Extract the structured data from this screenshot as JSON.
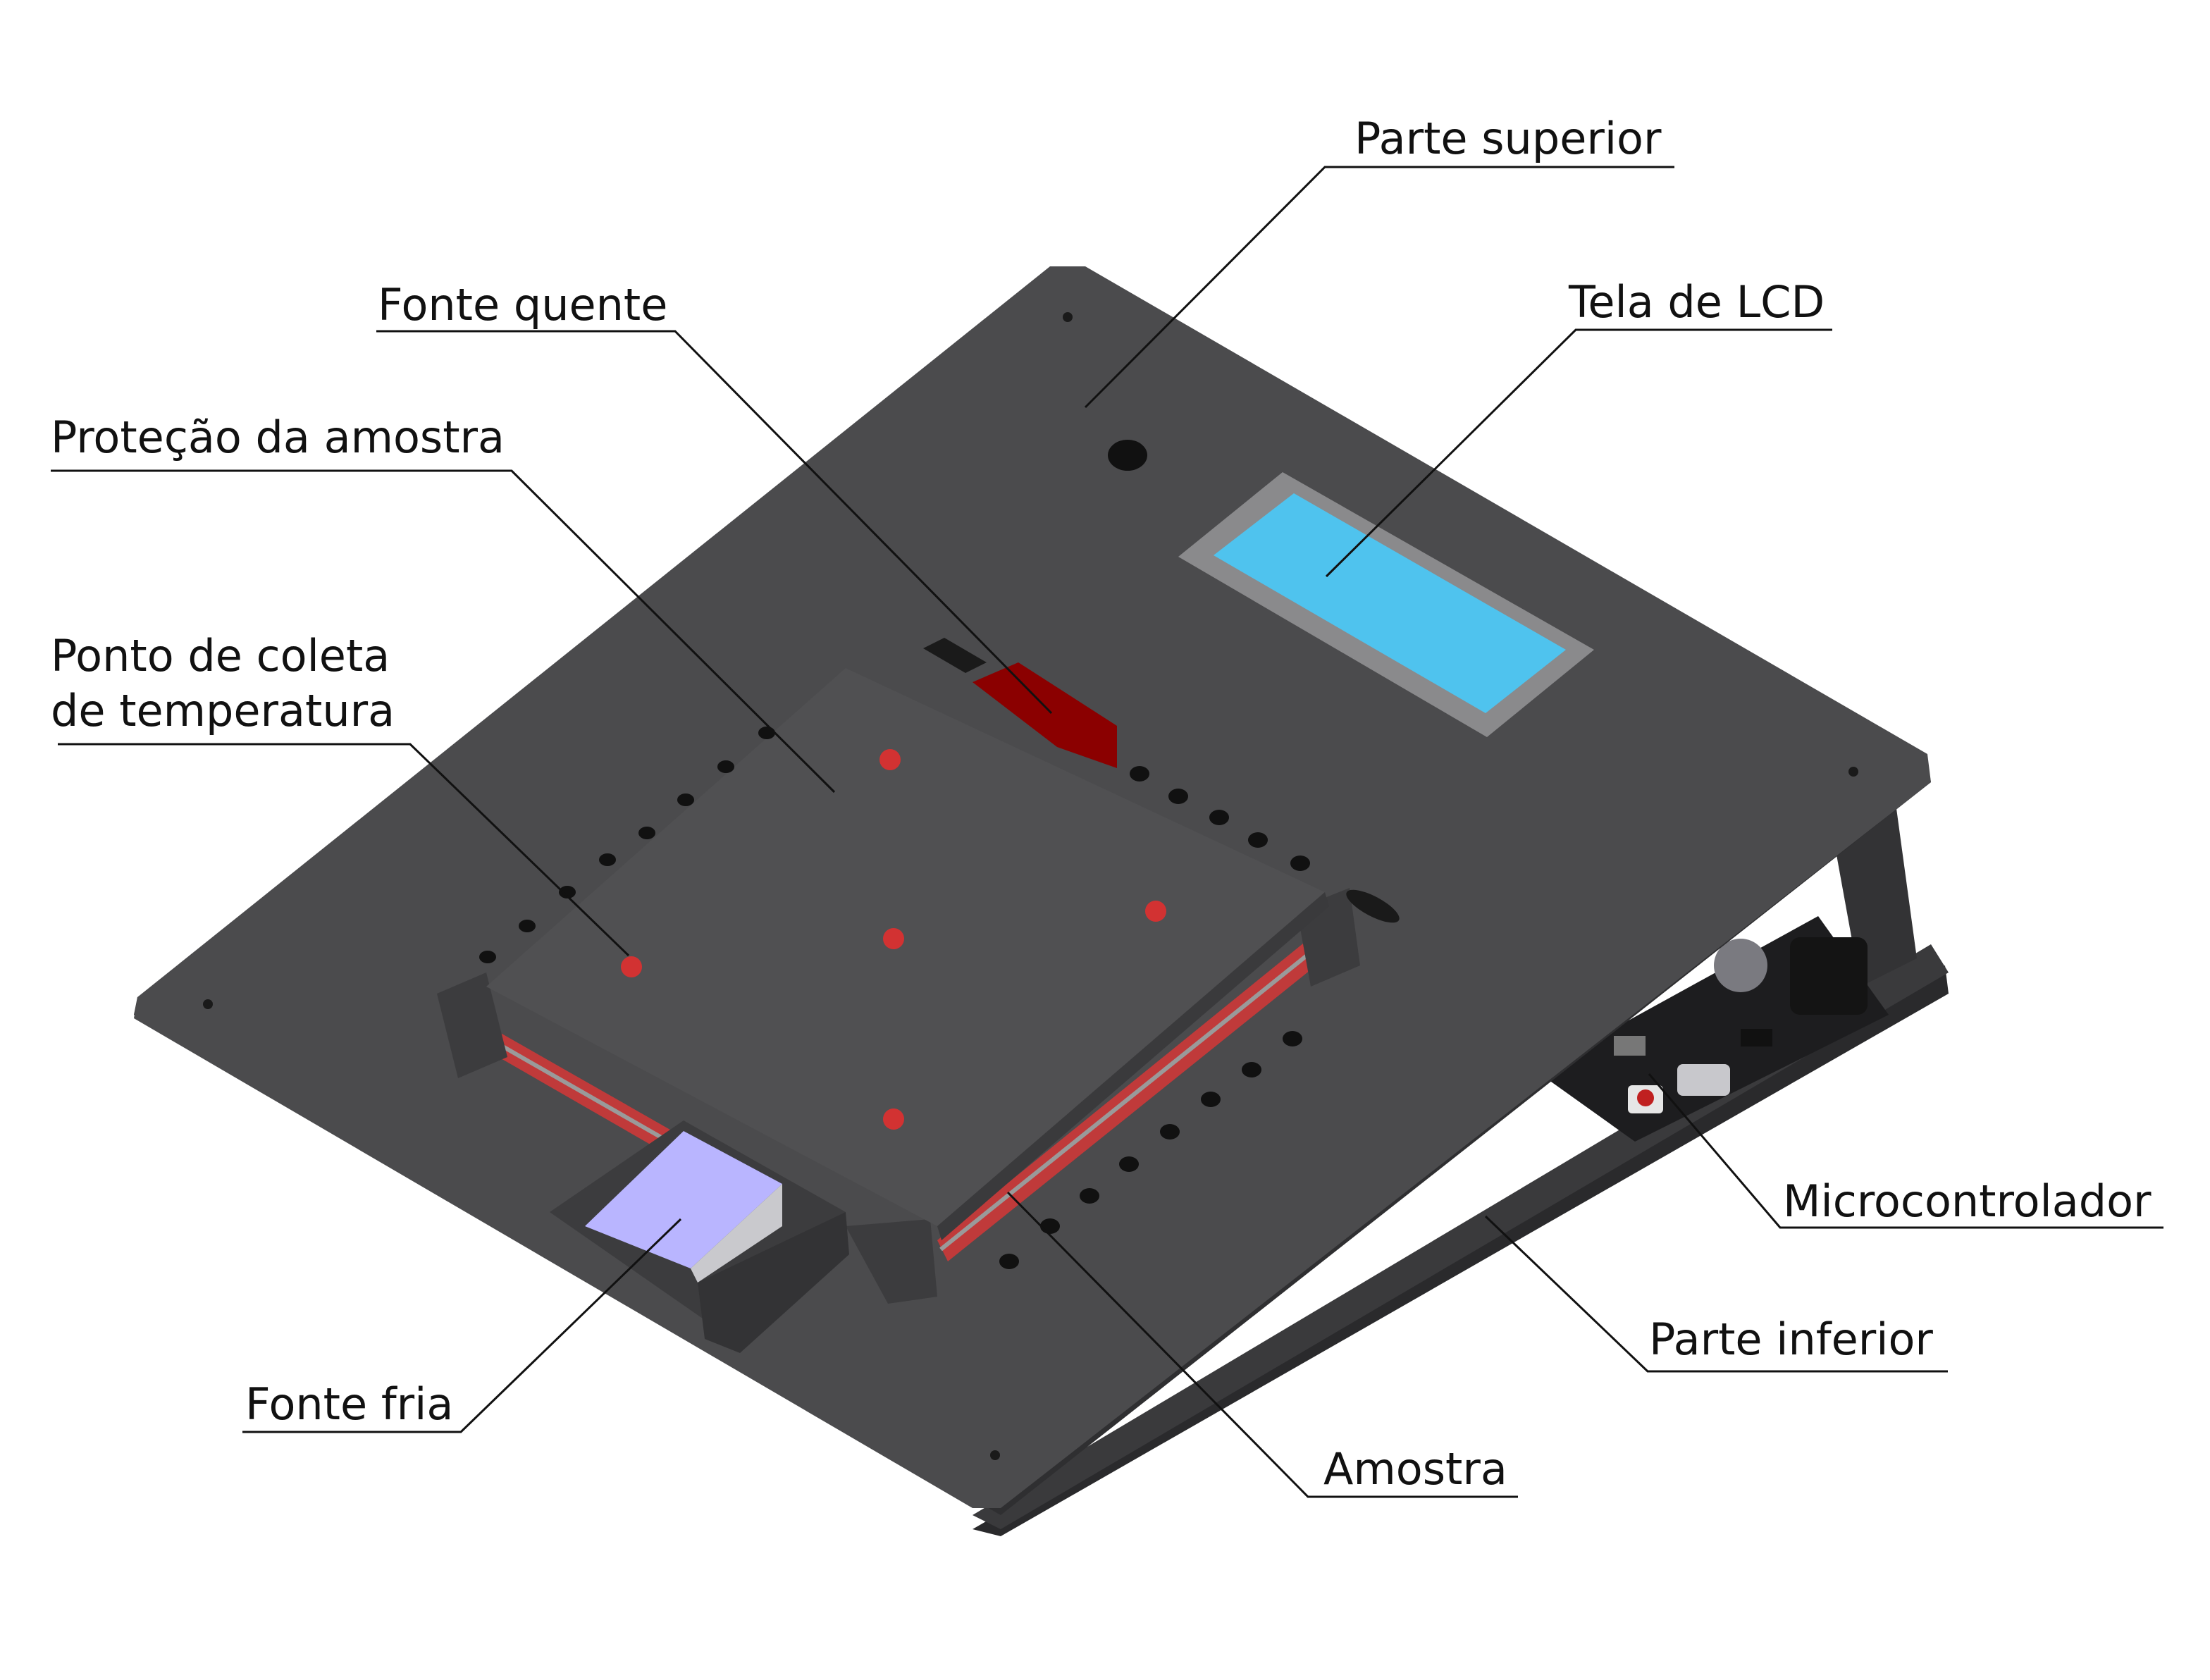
{
  "colors": {
    "board_top": "#4b4b4d",
    "board_edge": "#2f2f31",
    "board_bottom": "#3a3a3c",
    "plate": "#505052",
    "lcd_frame": "#8a8a8c",
    "lcd_screen": "#4fc3ee",
    "hot_source": "#8b0000",
    "cold_source": "#b9b5ff",
    "sample_stripe": "#c03a3a",
    "hole_glow": "#d23232",
    "pcb": "#1d1d1f"
  },
  "labels": {
    "parte_superior": "Parte superior",
    "tela_lcd": "Tela de LCD",
    "fonte_quente": "Fonte quente",
    "protecao_amostra": "Proteção da amostra",
    "ponto_coleta_l1": "Ponto de coleta",
    "ponto_coleta_l2": "de temperatura",
    "microcontrolador": "Microcontrolador",
    "parte_inferior": "Parte inferior",
    "fonte_fria": "Fonte fria",
    "amostra": "Amostra"
  }
}
